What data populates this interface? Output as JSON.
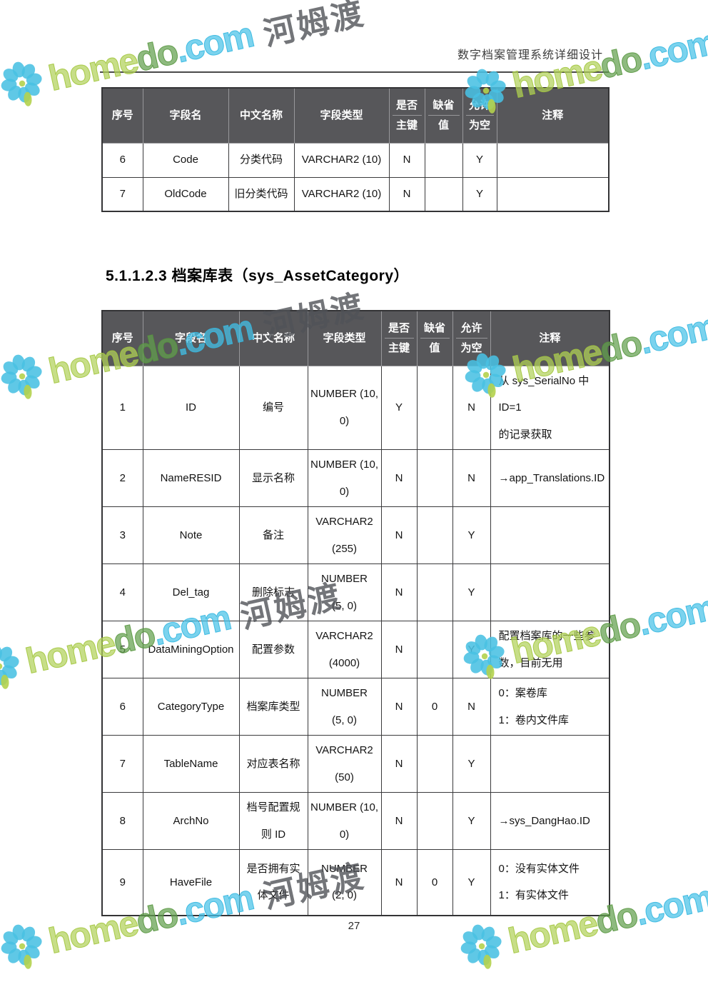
{
  "page": {
    "header_title": "数字档案管理系统详细设计",
    "section_heading": "5.1.1.2.3 档案库表（sys_AssetCategory）",
    "page_number": "27"
  },
  "watermark": {
    "brand_home": "home",
    "brand_do": "do",
    "brand_com": ".com",
    "brand_cn": "河姆渡",
    "colors": {
      "petal_cyan": "#49c0e3",
      "leaf_lime": "#b4d24c",
      "text_home": "#b1d15a",
      "text_do": "#63a04d",
      "text_com": "#48c2e7",
      "text_cn": "#505258"
    }
  },
  "table1": {
    "headers": [
      "序号",
      "字段名",
      "中文名称",
      "字段类型",
      "是否\n主键",
      "缺省\n值",
      "允许\n为空",
      "注释"
    ],
    "rows": [
      [
        "6",
        "Code",
        "分类代码",
        "VARCHAR2 (10)",
        "N",
        "",
        "Y",
        ""
      ],
      [
        "7",
        "OldCode",
        "旧分类代码",
        "VARCHAR2 (10)",
        "N",
        "",
        "Y",
        ""
      ]
    ]
  },
  "table2": {
    "headers": [
      "序号",
      "字段名",
      "中文名称",
      "字段类型",
      "是否\n主键",
      "缺省\n值",
      "允许\n为空",
      "注释"
    ],
    "rows": [
      [
        "1",
        "ID",
        "编号",
        "NUMBER (10,\n0)",
        "Y",
        "",
        "N",
        "从 sys_SerialNo 中 ID=1\n的记录获取"
      ],
      [
        "2",
        "NameRESID",
        "显示名称",
        "NUMBER (10,\n0)",
        "N",
        "",
        "N",
        "→app_Translations.ID"
      ],
      [
        "3",
        "Note",
        "备注",
        "VARCHAR2\n(255)",
        "N",
        "",
        "Y",
        ""
      ],
      [
        "4",
        "Del_tag",
        "删除标志",
        "NUMBER\n(5, 0)",
        "N",
        "",
        "Y",
        ""
      ],
      [
        "5",
        "DataMiningOption",
        "配置参数",
        "VARCHAR2\n(4000)",
        "N",
        "",
        "Y",
        "配置档案库的一些参\n数，目前无用"
      ],
      [
        "6",
        "CategoryType",
        "档案库类型",
        "NUMBER\n(5, 0)",
        "N",
        "0",
        "N",
        "0：案卷库\n1：卷内文件库"
      ],
      [
        "7",
        "TableName",
        "对应表名称",
        "VARCHAR2\n(50)",
        "N",
        "",
        "Y",
        ""
      ],
      [
        "8",
        "ArchNo",
        "档号配置规\n则 ID",
        "NUMBER (10,\n0)",
        "N",
        "",
        "Y",
        "→sys_DangHao.ID"
      ],
      [
        "9",
        "HaveFile",
        "是否拥有实\n体文件",
        "NUMBER\n(2, 0)",
        "N",
        "0",
        "Y",
        "0：没有实体文件\n1：有实体文件"
      ]
    ]
  }
}
